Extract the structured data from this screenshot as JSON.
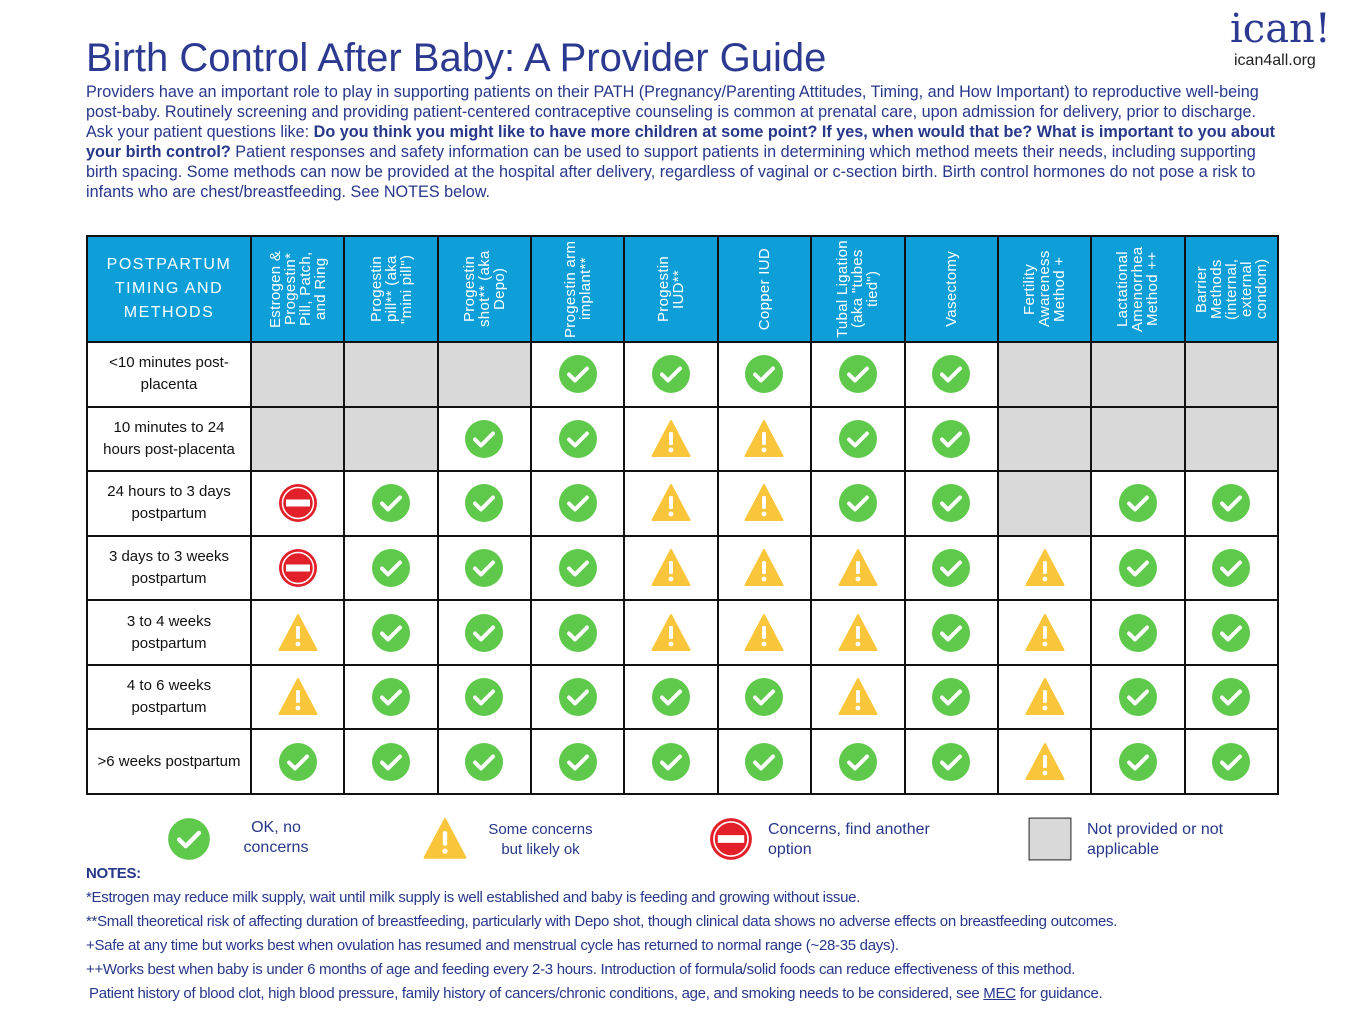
{
  "logo": {
    "name": "ican!",
    "url": "ican4all.org"
  },
  "header": {
    "title": "Birth Control After Baby: A Provider Guide",
    "intro": [
      "Providers have an important role to play in supporting patients on their PATH (Pregnancy/Parenting Attitudes, Timing, and How Important) to reproductive well-being post-baby. Routinely screening and providing patient-centered contraceptive counseling is common at prenatal care, upon admission for delivery, prior to discharge. Ask your patient questions like: ",
      "Do you think you might like to have more children at some point? If yes, when would that be? What is important to you about your birth control?",
      " Patient responses and safety information can be used to support patients in determining which method meets their needs, including supporting birth spacing. Some methods can now be provided at the hospital after delivery, regardless of vaginal or c-section birth.  Birth control hormones do not pose a risk to infants who are chest/breastfeeding. See NOTES below."
    ]
  },
  "table": {
    "corner": "POSTPARTUM TIMING AND METHODS",
    "columns": [
      "Estrogen & Progestin* Pill, Patch, and Ring",
      "Progestin pill** (aka \"mini pill\")",
      "Progestin shot** (aka Depo)",
      "Progestin arm implant**",
      "Progestin IUD**",
      "Copper IUD",
      "Tubal Ligation (aka \"tubes tied\")",
      "Vasectomy",
      "Fertility Awareness Method +",
      "Lactational Amenorrhea Method ++",
      "Barrier Methods (internal, external condom)"
    ],
    "rows": [
      {
        "label": "<10 minutes post-placenta",
        "cells": [
          3,
          3,
          3,
          0,
          0,
          0,
          0,
          0,
          3,
          3,
          3
        ]
      },
      {
        "label": "10 minutes to 24 hours post-placenta",
        "cells": [
          3,
          3,
          0,
          0,
          1,
          1,
          0,
          0,
          3,
          3,
          3
        ]
      },
      {
        "label": "24 hours to 3  days postpartum",
        "cells": [
          2,
          0,
          0,
          0,
          1,
          1,
          0,
          0,
          3,
          0,
          0
        ]
      },
      {
        "label": "3 days to 3 weeks postpartum",
        "cells": [
          2,
          0,
          0,
          0,
          1,
          1,
          1,
          0,
          1,
          0,
          0
        ]
      },
      {
        "label": "3 to 4 weeks postpartum",
        "cells": [
          1,
          0,
          0,
          0,
          1,
          1,
          1,
          0,
          1,
          0,
          0
        ]
      },
      {
        "label": "4 to 6 weeks postpartum",
        "cells": [
          1,
          0,
          0,
          0,
          0,
          0,
          1,
          0,
          1,
          0,
          0
        ]
      },
      {
        "label": ">6 weeks postpartum",
        "cells": [
          0,
          0,
          0,
          0,
          0,
          0,
          0,
          0,
          1,
          0,
          0
        ]
      }
    ]
  },
  "legend": [
    "OK, no concerns",
    "Some concerns but likely ok",
    "Concerns, find another option",
    "Not provided or not applicable"
  ],
  "notes": {
    "heading": "NOTES:",
    "items": [
      "*Estrogen may reduce milk supply,  wait until milk supply is well established and baby is feeding and growing without issue.",
      "**Small theoretical risk of affecting duration of breastfeeding, particularly with Depo shot, though clinical data shows no adverse effects on breastfeeding outcomes.",
      "+Safe at any time but works best when ovulation has resumed and menstrual cycle has returned to normal range (~28-35 days).",
      "++Works best when baby is under 6 months of age and feeding every 2-3 hours. Introduction of formula/solid foods can reduce effectiveness of this method."
    ],
    "footer": [
      "Patient history of blood clot, high blood pressure, family history of cancers/chronic conditions, age, and smoking needs to be considered, see ",
      "MEC",
      " for guidance."
    ]
  }
}
